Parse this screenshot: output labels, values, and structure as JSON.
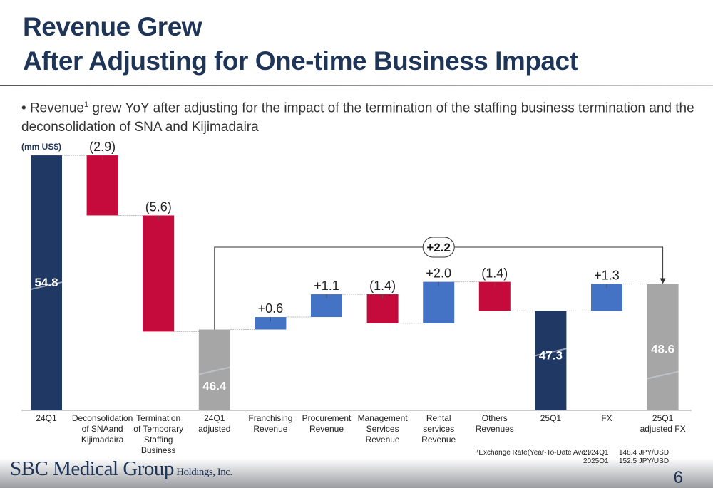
{
  "title_line1": "Revenue Grew",
  "title_line2": "After Adjusting for One-time Business Impact",
  "bullet": {
    "pre": "Revenue",
    "sup": "1",
    "post": " grew YoY after adjusting for the impact of the termination of the staffing business termination and the deconsolidation of SNA and Kijimadaira"
  },
  "chart_data": {
    "type": "waterfall",
    "unit_label": "(mm US$)",
    "categories": [
      [
        "24Q1"
      ],
      [
        "Deconsolidation",
        "of SNAand",
        "Kijimadaira"
      ],
      [
        "Termination",
        "of Temporary",
        "Staffing",
        "Business"
      ],
      [
        "24Q1",
        "adjusted"
      ],
      [
        "Franchising",
        "Revenue"
      ],
      [
        "Procurement",
        "Revenue"
      ],
      [
        "Management",
        "Services",
        "Revenue"
      ],
      [
        "Rental",
        "services",
        "Revenue"
      ],
      [
        "Others",
        "Revenues"
      ],
      [
        "25Q1"
      ],
      [
        "FX"
      ],
      [
        "25Q1",
        "adjusted FX"
      ]
    ],
    "kinds": [
      "total",
      "delta",
      "delta",
      "total",
      "delta",
      "delta",
      "delta",
      "delta",
      "delta",
      "total",
      "delta",
      "total"
    ],
    "values": [
      54.8,
      -2.9,
      -5.6,
      46.4,
      0.6,
      1.1,
      -1.4,
      2.0,
      -1.4,
      47.3,
      1.3,
      48.6
    ],
    "labels": [
      "54.8",
      "(2.9)",
      "(5.6)",
      "46.4",
      "+0.6",
      "+1.1",
      "(1.4)",
      "+2.0",
      "(1.4)",
      "47.3",
      "+1.3",
      "48.6"
    ],
    "axis_min_shown": 42.5,
    "broken_axis": true,
    "bracket": {
      "from": "24Q1 adjusted",
      "to": "25Q1 adjusted FX",
      "label": "+2.2"
    },
    "colors": {
      "total_dark": "#1f3864",
      "total_grey": "#a6a6a6",
      "decrease": "#c50a3c",
      "increase": "#4472c4"
    }
  },
  "footnote": {
    "label": "¹Exchange Rate(Year-To-Date Ave.)",
    "rows": [
      [
        "2024Q1",
        "148.4 JPY/USD"
      ],
      [
        "2025Q1",
        "152.5 JPY/USD"
      ]
    ]
  },
  "logo": {
    "main": "SBC Medical Group",
    "sub": " Holdings, Inc."
  },
  "page_number": "6"
}
